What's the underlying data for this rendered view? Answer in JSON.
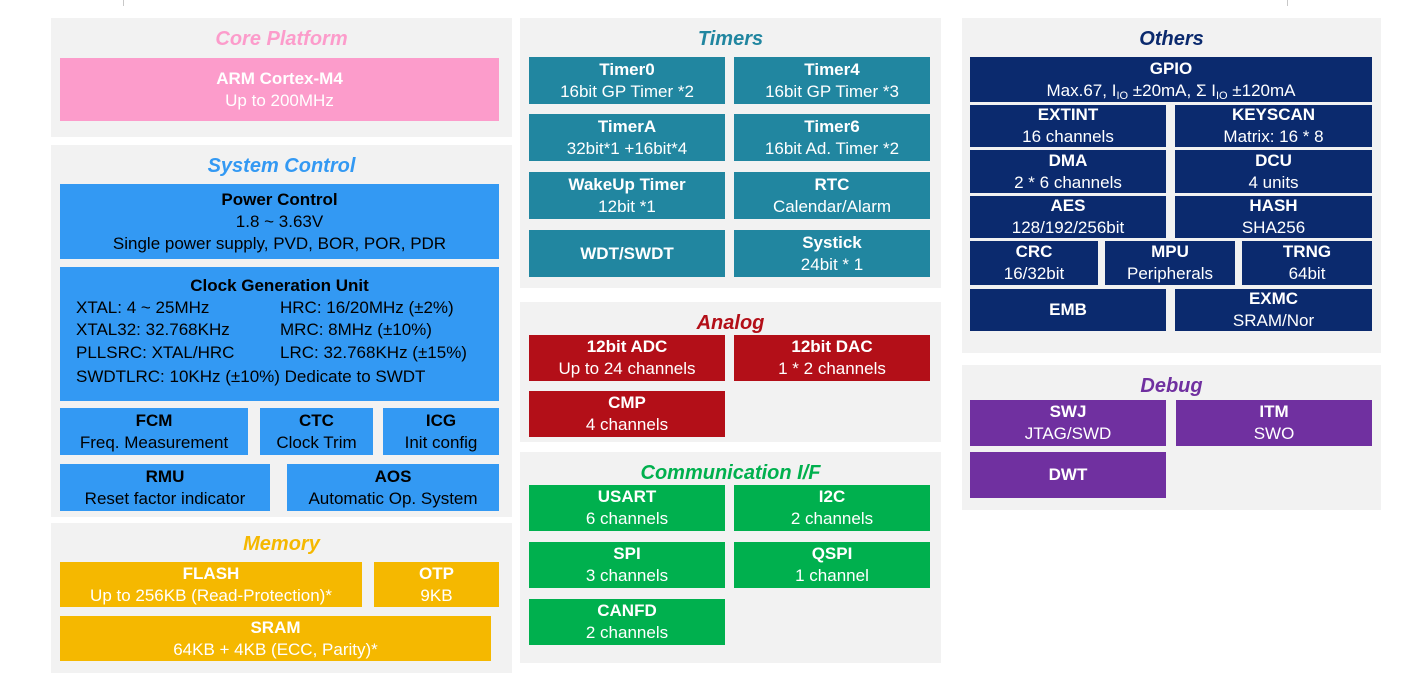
{
  "core": {
    "title": "Core Platform",
    "arm": {
      "name": "ARM Cortex-M4",
      "desc": "Up to 200MHz"
    }
  },
  "system": {
    "title": "System Control",
    "power": {
      "name": "Power Control",
      "line1": "1.8 ~ 3.63V",
      "line2": "Single power supply, PVD, BOR, POR,  PDR"
    },
    "cgu": {
      "title": "Clock Generation Unit",
      "xtal": "XTAL: 4 ~ 25MHz",
      "hrc": "HRC: 16/20MHz (±2%)",
      "xtal32": "XTAL32: 32.768KHz",
      "mrc": "MRC: 8MHz (±10%)",
      "pllsrc": "PLLSRC: XTAL/HRC",
      "lrc": "LRC: 32.768KHz (±15%)",
      "swdtlrc": "SWDTLRC: 10KHz (±10%) Dedicate to SWDT"
    },
    "fcm": {
      "name": "FCM",
      "desc": "Freq. Measurement"
    },
    "ctc": {
      "name": "CTC",
      "desc": "Clock Trim"
    },
    "icg": {
      "name": "ICG",
      "desc": "Init config"
    },
    "rmu": {
      "name": "RMU",
      "desc": "Reset factor indicator"
    },
    "aos": {
      "name": "AOS",
      "desc": "Automatic Op. System"
    }
  },
  "memory": {
    "title": "Memory",
    "flash": {
      "name": "FLASH",
      "desc": "Up to 256KB (Read-Protection)*"
    },
    "otp": {
      "name": "OTP",
      "desc": "9KB"
    },
    "sram": {
      "name": "SRAM",
      "desc": "64KB + 4KB (ECC, Parity)*"
    }
  },
  "timers": {
    "title": "Timers",
    "timer0": {
      "name": "Timer0",
      "desc": "16bit GP Timer *2"
    },
    "timer4": {
      "name": "Timer4",
      "desc": "16bit GP Timer *3"
    },
    "timera": {
      "name": "TimerA",
      "desc": "32bit*1 +16bit*4"
    },
    "timer6": {
      "name": "Timer6",
      "desc": "16bit Ad. Timer *2"
    },
    "wakeup": {
      "name": "WakeUp Timer",
      "desc": "12bit *1"
    },
    "rtc": {
      "name": "RTC",
      "desc": "Calendar/Alarm"
    },
    "wdt": {
      "name": "WDT/SWDT"
    },
    "systick": {
      "name": "Systick",
      "desc": "24bit * 1"
    }
  },
  "analog": {
    "title": "Analog",
    "adc": {
      "name": "12bit ADC",
      "desc": "Up to 24 channels"
    },
    "dac": {
      "name": "12bit DAC",
      "desc": "1 * 2 channels"
    },
    "cmp": {
      "name": "CMP",
      "desc": "4 channels"
    }
  },
  "comm": {
    "title": "Communication I/F",
    "usart": {
      "name": "USART",
      "desc": "6 channels"
    },
    "i2c": {
      "name": "I2C",
      "desc": "2 channels"
    },
    "spi": {
      "name": "SPI",
      "desc": "3 channels"
    },
    "qspi": {
      "name": "QSPI",
      "desc": "1 channel"
    },
    "canfd": {
      "name": "CANFD",
      "desc": "2 channels"
    }
  },
  "others": {
    "title": "Others",
    "gpio": {
      "name": "GPIO",
      "p1": "Max.67, I",
      "sub1": "IO",
      "p2": " ±20mA, Σ I",
      "sub2": "IO",
      "p3": " ±120mA"
    },
    "extint": {
      "name": "EXTINT",
      "desc": "16 channels"
    },
    "keyscan": {
      "name": "KEYSCAN",
      "desc": "Matrix: 16 * 8"
    },
    "dma": {
      "name": "DMA",
      "desc": "2 * 6 channels"
    },
    "dcu": {
      "name": "DCU",
      "desc": "4 units"
    },
    "aes": {
      "name": "AES",
      "desc": "128/192/256bit"
    },
    "hash": {
      "name": "HASH",
      "desc": "SHA256"
    },
    "crc": {
      "name": "CRC",
      "desc": "16/32bit"
    },
    "mpu": {
      "name": "MPU",
      "desc": "Peripherals"
    },
    "trng": {
      "name": "TRNG",
      "desc": "64bit"
    },
    "emb": {
      "name": "EMB"
    },
    "exmc": {
      "name": "EXMC",
      "desc": "SRAM/Nor"
    }
  },
  "debug": {
    "title": "Debug",
    "swj": {
      "name": "SWJ",
      "desc": "JTAG/SWD"
    },
    "itm": {
      "name": "ITM",
      "desc": "SWO"
    },
    "dwt": {
      "name": "DWT"
    }
  },
  "colors": {
    "core": "#fc9ccb",
    "system": "#3399f3",
    "memory": "#f5b800",
    "timers": "#2186a0",
    "analog": "#b30f18",
    "comm": "#00b04e",
    "others": "#0b2a6e",
    "debug": "#7030a0",
    "panel": "#f2f2f2"
  }
}
